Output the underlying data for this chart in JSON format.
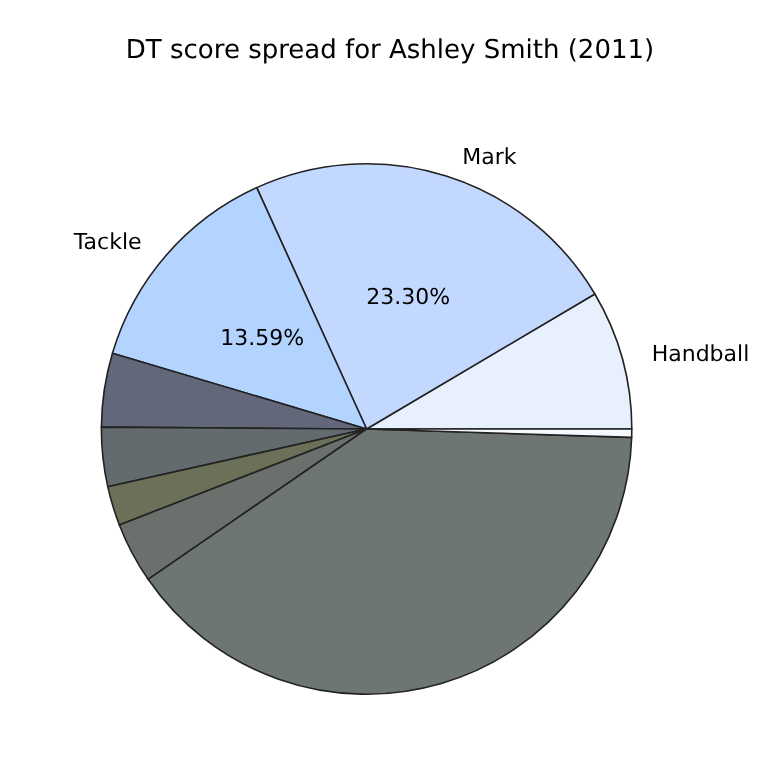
{
  "chart_data": {
    "type": "pie",
    "title": "DT score spread for Ashley Smith (2011)",
    "categories": [
      "Handball",
      "Mark",
      "Tackle",
      null,
      null,
      null,
      null,
      null,
      null
    ],
    "values": [
      8.5,
      23.3,
      13.59,
      4.5,
      3.6,
      2.4,
      3.7,
      39.91,
      0.5
    ],
    "colors": [
      "#e8f0fe",
      "#c3d8ff",
      "#b3d4ff",
      "#62687a",
      "#646b6e",
      "#6b7058",
      "#6b706c",
      "#6e7673",
      "#f4f8ff"
    ],
    "value_labels": [
      null,
      "23.30%",
      "13.59%",
      null,
      null,
      null,
      null,
      null,
      null
    ],
    "legend": false
  }
}
